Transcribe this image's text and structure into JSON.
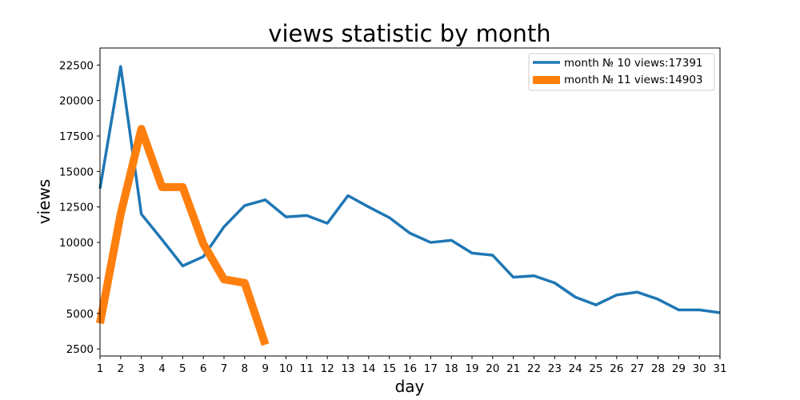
{
  "chart_data": {
    "type": "line",
    "title": "views statistic by month",
    "xlabel": "day",
    "ylabel": "views",
    "xlim": [
      1,
      31
    ],
    "ylim": [
      2000,
      23700
    ],
    "xticks": [
      1,
      2,
      3,
      4,
      5,
      6,
      7,
      8,
      9,
      10,
      11,
      12,
      13,
      14,
      15,
      16,
      17,
      18,
      19,
      20,
      21,
      22,
      23,
      24,
      25,
      26,
      27,
      28,
      29,
      30,
      31
    ],
    "yticks": [
      2500,
      5000,
      7500,
      10000,
      12500,
      15000,
      17500,
      20000,
      22500
    ],
    "grid": false,
    "legend_position": "top-right",
    "series": [
      {
        "name": "month № 10 views:17391",
        "color": "#1f77b4",
        "x": [
          1,
          2,
          3,
          4,
          5,
          6,
          7,
          8,
          9,
          10,
          11,
          12,
          13,
          14,
          15,
          16,
          17,
          18,
          19,
          20,
          21,
          22,
          23,
          24,
          25,
          26,
          27,
          28,
          29,
          30,
          31
        ],
        "y": [
          13800,
          22400,
          12000,
          10200,
          8350,
          9000,
          11100,
          12600,
          13000,
          11800,
          11900,
          11350,
          13300,
          12500,
          11750,
          10650,
          10000,
          10150,
          9250,
          9100,
          7550,
          7650,
          7150,
          6150,
          5600,
          6300,
          6500,
          6000,
          5250,
          5250,
          5050
        ]
      },
      {
        "name": "month № 11 views:14903",
        "color": "#ff7f0e",
        "x": [
          1,
          2,
          3,
          4,
          5,
          6,
          7,
          8,
          9
        ],
        "y": [
          4300,
          12000,
          18000,
          13900,
          13900,
          9900,
          7400,
          7150,
          2800
        ]
      }
    ]
  }
}
